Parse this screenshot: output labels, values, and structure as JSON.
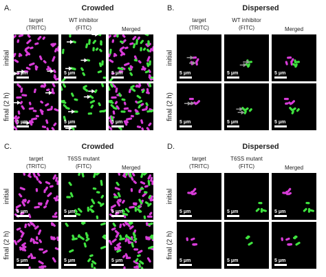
{
  "panels": [
    {
      "letter": "A.",
      "title": "Crowded",
      "density": "crowded",
      "columns": [
        [
          "target",
          "(TRITC)"
        ],
        [
          "WT inhibitor",
          "(FITC)"
        ],
        [
          "Merged"
        ]
      ],
      "rows": [
        "initial",
        "final (2 h)"
      ],
      "scale_bar": "5 μm"
    },
    {
      "letter": "B.",
      "title": "Dispersed",
      "density": "dispersed",
      "columns": [
        [
          "target",
          "(TRITC)"
        ],
        [
          "WT inhibitor",
          "(FITC)"
        ],
        [
          "Merged"
        ]
      ],
      "rows": [
        "initial",
        "final (2 h)"
      ],
      "scale_bar": "5 μm"
    },
    {
      "letter": "C.",
      "title": "Crowded",
      "density": "crowded",
      "columns": [
        [
          "target",
          "(TRITC)"
        ],
        [
          "T6SS  mutant",
          "(FITC)"
        ],
        [
          "Merged"
        ]
      ],
      "rows": [
        "initial",
        "final (2 h)"
      ],
      "scale_bar": "5 μm"
    },
    {
      "letter": "D.",
      "title": "Dispersed",
      "density": "dispersed",
      "columns": [
        [
          "target",
          "(TRITC)"
        ],
        [
          "T6SS  mutant",
          "(FITC)"
        ],
        [
          "Merged"
        ]
      ],
      "rows": [
        "initial",
        "final (2 h)"
      ],
      "scale_bar": "5 μm"
    }
  ]
}
